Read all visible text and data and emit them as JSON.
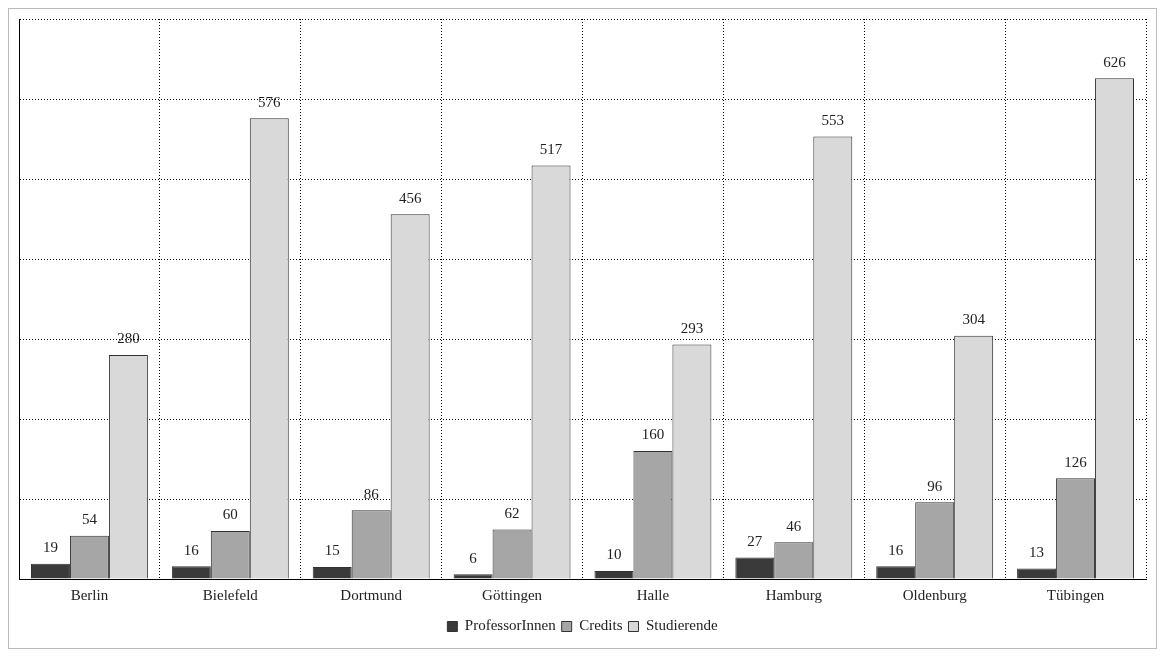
{
  "chart_data": {
    "type": "bar",
    "categories": [
      "Berlin",
      "Bielefeld",
      "Dortmund",
      "Göttingen",
      "Halle",
      "Hamburg",
      "Oldenburg",
      "Tübingen"
    ],
    "series": [
      {
        "name": "ProfessorInnen",
        "color": "#3a3a3a",
        "values": [
          19,
          16,
          15,
          6,
          10,
          27,
          16,
          13
        ]
      },
      {
        "name": "Credits",
        "color": "#a6a6a6",
        "values": [
          54,
          60,
          86,
          62,
          160,
          46,
          96,
          126
        ]
      },
      {
        "name": "Studierende",
        "color": "#d9d9d9",
        "values": [
          280,
          576,
          456,
          517,
          293,
          553,
          304,
          626
        ]
      }
    ],
    "ylim": [
      0,
      700
    ],
    "yticks": [
      {
        "value": 0,
        "label": null
      },
      {
        "value": 100,
        "label": null
      },
      {
        "value": 200,
        "label": null
      },
      {
        "value": 300,
        "label": null
      },
      {
        "value": 400,
        "label": null
      },
      {
        "value": 500,
        "label": null
      },
      {
        "value": 600,
        "label": null
      },
      {
        "value": 700,
        "label": null
      }
    ],
    "tick_labels": "x",
    "grid": true,
    "legend": "bottom",
    "data_labels": true
  }
}
